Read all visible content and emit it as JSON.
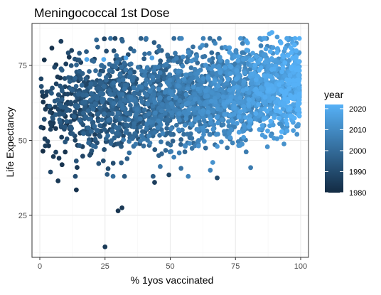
{
  "chart_data": {
    "type": "scatter",
    "title": "Meningococcal 1st Dose",
    "xlabel": "% 1yos vaccinated",
    "ylabel": "Life Expectancy",
    "xlim": [
      -3,
      103
    ],
    "ylim": [
      11,
      89
    ],
    "x_ticks": [
      0,
      25,
      50,
      75,
      100
    ],
    "x_tick_labels": [
      "0",
      "25",
      "50",
      "75",
      "100"
    ],
    "y_ticks": [
      25,
      50,
      75
    ],
    "y_tick_labels": [
      "25",
      "50",
      "75"
    ],
    "grid": true,
    "legend": {
      "title": "year",
      "placement": "right",
      "type": "colorbar",
      "range": [
        1980,
        2022
      ],
      "ticks": [
        1980,
        1990,
        2000,
        2010,
        2020
      ],
      "tick_labels": [
        "1980",
        "1990",
        "2000",
        "2010",
        "2020"
      ],
      "color_low": "#132B43",
      "color_high": "#56B1F7"
    },
    "colors": {
      "panel_border": "#333333",
      "grid_major": "#ebebeb",
      "grid_minor": "#f5f5f5",
      "text": "#000000",
      "tick_text": "#4d4d4d"
    },
    "points": [
      {
        "x": 25,
        "y": 14.5,
        "year": 1985
      },
      {
        "x": 30,
        "y": 26.5,
        "year": 1983
      },
      {
        "x": 31.5,
        "y": 27.5,
        "year": 1984
      },
      {
        "x": 14,
        "y": 33.5,
        "year": 1982
      },
      {
        "x": 7,
        "y": 36.5,
        "year": 1984
      },
      {
        "x": 44,
        "y": 36,
        "year": 1986
      },
      {
        "x": 49.5,
        "y": 38.5,
        "year": 1988
      },
      {
        "x": 68,
        "y": 37.5,
        "year": 1990
      },
      {
        "x": 18,
        "y": 77,
        "year": 2019
      },
      {
        "x": 24.5,
        "y": 77,
        "year": 2020
      },
      {
        "x": 33,
        "y": 77.5,
        "year": 2018
      },
      {
        "x": 43,
        "y": 77.5,
        "year": 2017
      },
      {
        "x": 10,
        "y": 75.5,
        "year": 1986
      },
      {
        "x": 89,
        "y": 86,
        "year": 2021
      },
      {
        "x": 88,
        "y": 85.5,
        "year": 2020
      },
      {
        "x": 91,
        "y": 84.5,
        "year": 2015
      }
    ],
    "bulk": {
      "count": 2600,
      "x_range": [
        0,
        100
      ],
      "y_center": [
        60,
        68
      ],
      "y_spread": [
        9,
        7
      ],
      "year_range": [
        1980,
        2022
      ]
    }
  }
}
